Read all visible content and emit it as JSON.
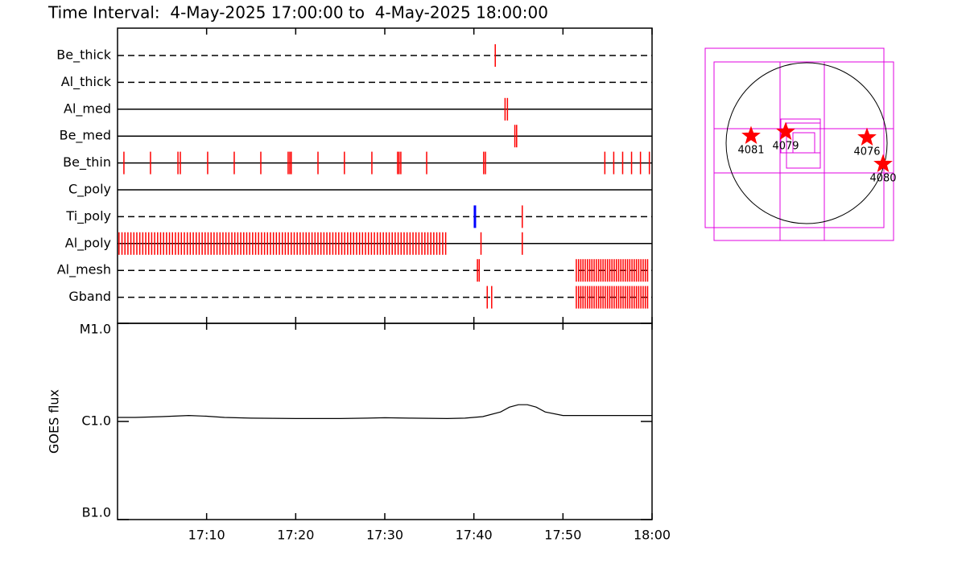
{
  "chart_data": [
    {
      "type": "event",
      "title": "Time Interval:  4-May-2025 17:00:00 to  4-May-2025 18:00:00",
      "xlim": [
        "17:00",
        "18:00"
      ],
      "xticks": [
        "17:10",
        "17:20",
        "17:30",
        "17:40",
        "17:50",
        "18:00"
      ],
      "rows": [
        {
          "name": "Be_thick",
          "line": "dashed",
          "color": "#ff0000",
          "x": [
            "17:42:24"
          ]
        },
        {
          "name": "Al_thick",
          "line": "dashed",
          "color": "#ff0000",
          "x": []
        },
        {
          "name": "Al_med",
          "line": "solid",
          "color": "#ff0000",
          "x": [
            "17:43:30",
            "17:43:46"
          ]
        },
        {
          "name": "Be_med",
          "line": "solid",
          "color": "#ff0000",
          "x": [
            "17:44:36",
            "17:44:48"
          ]
        },
        {
          "name": "Be_thin",
          "line": "solid",
          "color": "#ff0000",
          "x": [
            "17:00:43",
            "17:03:42",
            "17:06:47",
            "17:07:03",
            "17:10:07",
            "17:13:06",
            "17:16:05",
            "17:19:09",
            "17:19:20",
            "17:19:30",
            "17:22:30",
            "17:25:28",
            "17:28:33",
            "17:31:26",
            "17:31:36",
            "17:31:48",
            "17:34:42",
            "17:41:06",
            "17:41:18",
            "17:54:42",
            "17:55:42",
            "17:56:42",
            "17:57:42",
            "17:58:42",
            "17:59:42"
          ]
        },
        {
          "name": "C_poly",
          "line": "solid",
          "color": "#ff0000",
          "x": []
        },
        {
          "name": "Ti_poly",
          "line": "dashed",
          "colors": [
            "#0000ff",
            "#ff0000"
          ],
          "x": [
            "17:40:07",
            "17:45:26"
          ]
        },
        {
          "name": "Al_poly",
          "line": "solid",
          "color": "#ff0000",
          "x": [
            "17:00:10",
            "17:00:30",
            "17:00:50",
            "17:01:10",
            "17:01:30",
            "17:01:50",
            "17:02:10",
            "17:02:30",
            "17:02:50",
            "17:03:10",
            "17:03:30",
            "17:03:50",
            "17:04:10",
            "17:04:30",
            "17:04:50",
            "17:05:10",
            "17:05:30",
            "17:05:50",
            "17:06:10",
            "17:06:30",
            "17:06:50",
            "17:07:10",
            "17:07:30",
            "17:07:50",
            "17:08:10",
            "17:08:30",
            "17:08:50",
            "17:09:10",
            "17:09:30",
            "17:09:50",
            "17:10:10",
            "17:10:30",
            "17:10:50",
            "17:11:10",
            "17:11:30",
            "17:11:50",
            "17:12:10",
            "17:12:30",
            "17:12:50",
            "17:13:10",
            "17:13:30",
            "17:13:50",
            "17:14:10",
            "17:14:30",
            "17:14:50",
            "17:15:10",
            "17:15:30",
            "17:15:50",
            "17:16:10",
            "17:16:30",
            "17:16:50",
            "17:17:10",
            "17:17:30",
            "17:17:50",
            "17:18:10",
            "17:18:30",
            "17:18:50",
            "17:19:10",
            "17:19:30",
            "17:19:50",
            "17:20:10",
            "17:20:30",
            "17:20:50",
            "17:21:10",
            "17:21:30",
            "17:21:50",
            "17:22:10",
            "17:22:30",
            "17:22:50",
            "17:23:10",
            "17:23:30",
            "17:23:50",
            "17:24:10",
            "17:24:30",
            "17:24:50",
            "17:25:10",
            "17:25:30",
            "17:25:50",
            "17:26:10",
            "17:26:30",
            "17:26:50",
            "17:27:10",
            "17:27:30",
            "17:27:50",
            "17:28:10",
            "17:28:30",
            "17:28:50",
            "17:29:10",
            "17:29:30",
            "17:29:50",
            "17:30:10",
            "17:30:30",
            "17:30:50",
            "17:31:10",
            "17:31:30",
            "17:31:50",
            "17:32:10",
            "17:32:30",
            "17:32:50",
            "17:33:10",
            "17:33:30",
            "17:33:50",
            "17:34:10",
            "17:34:30",
            "17:34:50",
            "17:35:10",
            "17:35:30",
            "17:35:50",
            "17:36:10",
            "17:36:30",
            "17:36:50",
            "17:40:48",
            "17:45:26"
          ]
        },
        {
          "name": "Al_mesh",
          "line": "dashed",
          "color": "#ff0000",
          "x": [
            "17:40:24",
            "17:40:36",
            "17:51:30",
            "17:51:45",
            "17:52:00",
            "17:52:15",
            "17:52:30",
            "17:52:45",
            "17:53:00",
            "17:53:15",
            "17:53:30",
            "17:53:45",
            "17:54:00",
            "17:54:15",
            "17:54:30",
            "17:54:45",
            "17:55:00",
            "17:55:15",
            "17:55:30",
            "17:55:45",
            "17:56:00",
            "17:56:15",
            "17:56:30",
            "17:56:45",
            "17:57:00",
            "17:57:15",
            "17:57:30",
            "17:57:45",
            "17:58:00",
            "17:58:15",
            "17:58:30",
            "17:58:45",
            "17:59:00",
            "17:59:15",
            "17:59:30"
          ]
        },
        {
          "name": "Gband",
          "line": "dashed",
          "color": "#ff0000",
          "x": [
            "17:41:30",
            "17:42:00",
            "17:51:30",
            "17:51:45",
            "17:52:00",
            "17:52:15",
            "17:52:30",
            "17:52:45",
            "17:53:00",
            "17:53:15",
            "17:53:30",
            "17:53:45",
            "17:54:00",
            "17:54:15",
            "17:54:30",
            "17:54:45",
            "17:55:00",
            "17:55:15",
            "17:55:30",
            "17:55:45",
            "17:56:00",
            "17:56:15",
            "17:56:30",
            "17:56:45",
            "17:57:00",
            "17:57:15",
            "17:57:30",
            "17:57:45",
            "17:58:00",
            "17:58:15",
            "17:58:30",
            "17:58:45",
            "17:59:00",
            "17:59:15",
            "17:59:30"
          ]
        }
      ]
    },
    {
      "type": "line",
      "ylabel": "GOES flux",
      "log_scale": true,
      "color": "#000000",
      "xlim": [
        "17:00",
        "18:00"
      ],
      "xticks": [
        "17:10",
        "17:20",
        "17:30",
        "17:40",
        "17:50",
        "18:00"
      ],
      "ylim": [
        1e-07,
        1e-05
      ],
      "yticks": [
        {
          "value": 1e-07,
          "label": "B1.0"
        },
        {
          "value": 1e-06,
          "label": "C1.0"
        },
        {
          "value": 1e-05,
          "label": "M1.0"
        }
      ],
      "x": [
        "17:00",
        "17:02",
        "17:05",
        "17:08",
        "17:10",
        "17:12",
        "17:15",
        "17:20",
        "17:25",
        "17:28",
        "17:30",
        "17:33",
        "17:37",
        "17:39",
        "17:41",
        "17:43",
        "17:44",
        "17:45",
        "17:46",
        "17:47",
        "17:48",
        "17:50",
        "17:52",
        "17:55",
        "18:00"
      ],
      "values": [
        1.1e-06,
        1.1e-06,
        1.12e-06,
        1.15e-06,
        1.13e-06,
        1.1e-06,
        1.08e-06,
        1.07e-06,
        1.07e-06,
        1.08e-06,
        1.09e-06,
        1.08e-06,
        1.07e-06,
        1.08e-06,
        1.12e-06,
        1.25e-06,
        1.4e-06,
        1.48e-06,
        1.48e-06,
        1.4e-06,
        1.25e-06,
        1.15e-06,
        1.15e-06,
        1.15e-06,
        1.15e-06
      ]
    },
    {
      "type": "map",
      "labels": [
        "4081",
        "4079",
        "4076",
        "4080"
      ]
    }
  ]
}
